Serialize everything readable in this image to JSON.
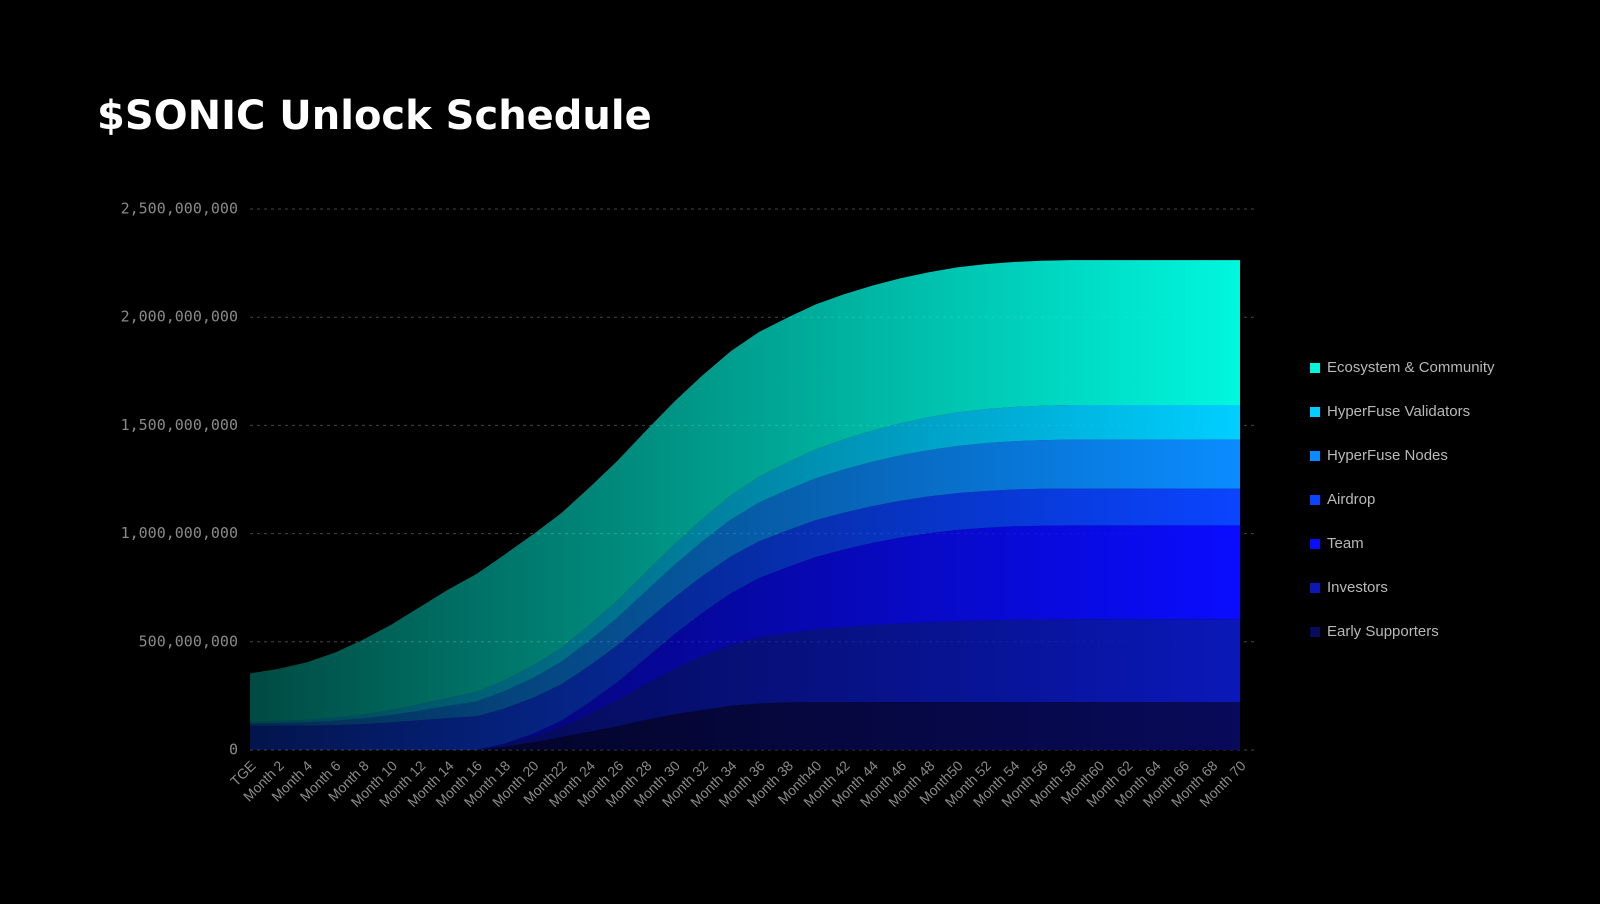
{
  "chart_data": {
    "type": "stacked-area",
    "title": "$SONIC Unlock Schedule",
    "categories": [
      "TGE",
      "Month 2",
      "Month 4",
      "Month 6",
      "Month 8",
      "Month 10",
      "Month 12",
      "Month 14",
      "Month 16",
      "Month 18",
      "Month 20",
      "Month22",
      "Month 24",
      "Month 26",
      "Month 28",
      "Month 30",
      "Month 32",
      "Month 34",
      "Month 36",
      "Month 38",
      "Month40",
      "Month 42",
      "Month 44",
      "Month 46",
      "Month 48",
      "Month50",
      "Month 52",
      "Month 54",
      "Month 56",
      "Month 58",
      "Month60",
      "Month 62",
      "Month 64",
      "Month 66",
      "Month 68",
      "Month 70"
    ],
    "series": [
      {
        "name": "Ecosystem & Community",
        "color": "#00f7de",
        "values": [
          223000000,
          240000000,
          265000000,
          300000000,
          345000000,
          394000000,
          448000000,
          500000000,
          545000000,
          580000000,
          605000000,
          622000000,
          635000000,
          645000000,
          653000000,
          659000000,
          663000000,
          666000000,
          668000000,
          669000000,
          670000000,
          670000000,
          670000000,
          670000000,
          670000000,
          670000000,
          670000000,
          670000000,
          670000000,
          670000000,
          670000000,
          670000000,
          670000000,
          670000000,
          670000000,
          670000000
        ]
      },
      {
        "name": "HyperFuse Validators",
        "color": "#00cfff",
        "values": [
          8000000,
          10000000,
          12000000,
          15000000,
          19000000,
          24000000,
          30000000,
          37000000,
          44000000,
          51000000,
          58000000,
          65000000,
          72000000,
          80000000,
          88000000,
          96000000,
          104000000,
          112000000,
          120000000,
          127000000,
          133000000,
          139000000,
          144000000,
          148000000,
          152000000,
          155000000,
          157000000,
          158000000,
          159000000,
          160000000,
          160000000,
          160000000,
          160000000,
          160000000,
          160000000,
          160000000
        ]
      },
      {
        "name": "HyperFuse Nodes",
        "color": "#0a8cff",
        "values": [
          10000000,
          12000000,
          15000000,
          20000000,
          26000000,
          34000000,
          44000000,
          56000000,
          68000000,
          80000000,
          92000000,
          104000000,
          116000000,
          128000000,
          140000000,
          150000000,
          160000000,
          170000000,
          179000000,
          187000000,
          194000000,
          200000000,
          205000000,
          210000000,
          214000000,
          218000000,
          221000000,
          223000000,
          225000000,
          226000000,
          226000000,
          226000000,
          226000000,
          226000000,
          226000000,
          226000000
        ]
      },
      {
        "name": "Airdrop",
        "color": "#0a44ff",
        "values": [
          113000000,
          113000000,
          113000000,
          115000000,
          120000000,
          128000000,
          138000000,
          148000000,
          156000000,
          162000000,
          166000000,
          168000000,
          170000000,
          170000000,
          170000000,
          170000000,
          170000000,
          170000000,
          170000000,
          170000000,
          170000000,
          170000000,
          170000000,
          170000000,
          170000000,
          170000000,
          170000000,
          170000000,
          170000000,
          170000000,
          170000000,
          170000000,
          170000000,
          170000000,
          170000000,
          170000000
        ]
      },
      {
        "name": "Team",
        "color": "#0a0cff",
        "values": [
          0,
          0,
          0,
          0,
          0,
          0,
          0,
          0,
          0,
          5000000,
          15000000,
          30000000,
          55000000,
          85000000,
          120000000,
          160000000,
          200000000,
          240000000,
          275000000,
          305000000,
          335000000,
          360000000,
          380000000,
          398000000,
          412000000,
          422000000,
          428000000,
          432000000,
          434000000,
          434000000,
          434000000,
          434000000,
          434000000,
          434000000,
          434000000,
          434000000
        ]
      },
      {
        "name": "Investors",
        "color": "#0a18b8",
        "values": [
          0,
          0,
          0,
          0,
          0,
          0,
          0,
          0,
          0,
          10000000,
          25000000,
          45000000,
          80000000,
          120000000,
          165000000,
          210000000,
          250000000,
          280000000,
          305000000,
          320000000,
          335000000,
          345000000,
          355000000,
          362000000,
          368000000,
          373000000,
          377000000,
          380000000,
          381000000,
          382000000,
          382000000,
          382000000,
          382000000,
          382000000,
          382000000,
          382000000
        ]
      },
      {
        "name": "Early Supporters",
        "color": "#080a5a",
        "values": [
          0,
          0,
          0,
          0,
          0,
          0,
          0,
          0,
          0,
          15000000,
          35000000,
          60000000,
          85000000,
          110000000,
          140000000,
          165000000,
          185000000,
          205000000,
          215000000,
          220000000,
          222000000,
          222000000,
          222000000,
          222000000,
          222000000,
          222000000,
          222000000,
          222000000,
          222000000,
          222000000,
          222000000,
          222000000,
          222000000,
          222000000,
          222000000,
          222000000
        ]
      }
    ],
    "ylim": [
      0,
      2500000000
    ],
    "yticks": [
      0,
      {
        "value": 500000000,
        "label": "500,000,000"
      },
      {
        "value": 1000000000,
        "label": "1,000,000,000"
      },
      {
        "value": 1500000000,
        "label": "1,500,000,000"
      },
      {
        "value": 2000000000,
        "label": "2,000,000,000"
      },
      {
        "value": 2500000000,
        "label": "2,500,000,000"
      }
    ],
    "grid": true,
    "legend": "right"
  }
}
